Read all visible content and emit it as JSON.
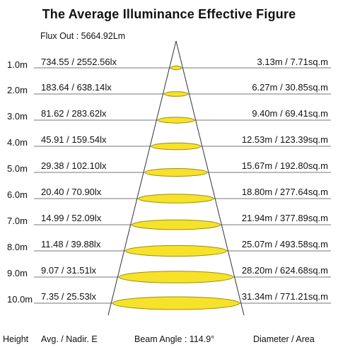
{
  "title": "The Average Illuminance Effective Figure",
  "flux_out": "Flux Out : 5664.92Lm",
  "footer": {
    "height": "Height",
    "avg": "Avg. / Nadir. E",
    "beam": "Beam Angle : 114.9°",
    "diameter": "Diameter / Area"
  },
  "colors": {
    "ellipse_fill": "#F7E22A",
    "ellipse_stroke": "#9C8E10",
    "lines": "#777777"
  },
  "rows": [
    {
      "height": "1.0m",
      "avg": "734.55 / 2552.56lx",
      "dia": "3.13m / 7.71sq.m"
    },
    {
      "height": "2.0m",
      "avg": "183.64 / 638.14lx",
      "dia": "6.27m / 30.85sq.m"
    },
    {
      "height": "3.0m",
      "avg": "81.62 / 283.62lx",
      "dia": "9.40m / 69.41sq.m"
    },
    {
      "height": "4.0m",
      "avg": "45.91 / 159.54lx",
      "dia": "12.53m / 123.39sq.m"
    },
    {
      "height": "5.0m",
      "avg": "29.38 / 102.10lx",
      "dia": "15.67m / 192.80sq.m"
    },
    {
      "height": "6.0m",
      "avg": "20.40 / 70.90lx",
      "dia": "18.80m / 277.64sq.m"
    },
    {
      "height": "7.0m",
      "avg": "14.99 / 52.09lx",
      "dia": "21.94m / 377.89sq.m"
    },
    {
      "height": "8.0m",
      "avg": "11.48 / 39.88lx",
      "dia": "25.07m / 493.58sq.m"
    },
    {
      "height": "9.0m",
      "avg": "9.07 / 31.51lx",
      "dia": "28.20m / 624.68sq.m"
    },
    {
      "height": "10.0m",
      "avg": "7.35 / 25.53lx",
      "dia": "31.34m / 771.21sq.m"
    }
  ]
}
